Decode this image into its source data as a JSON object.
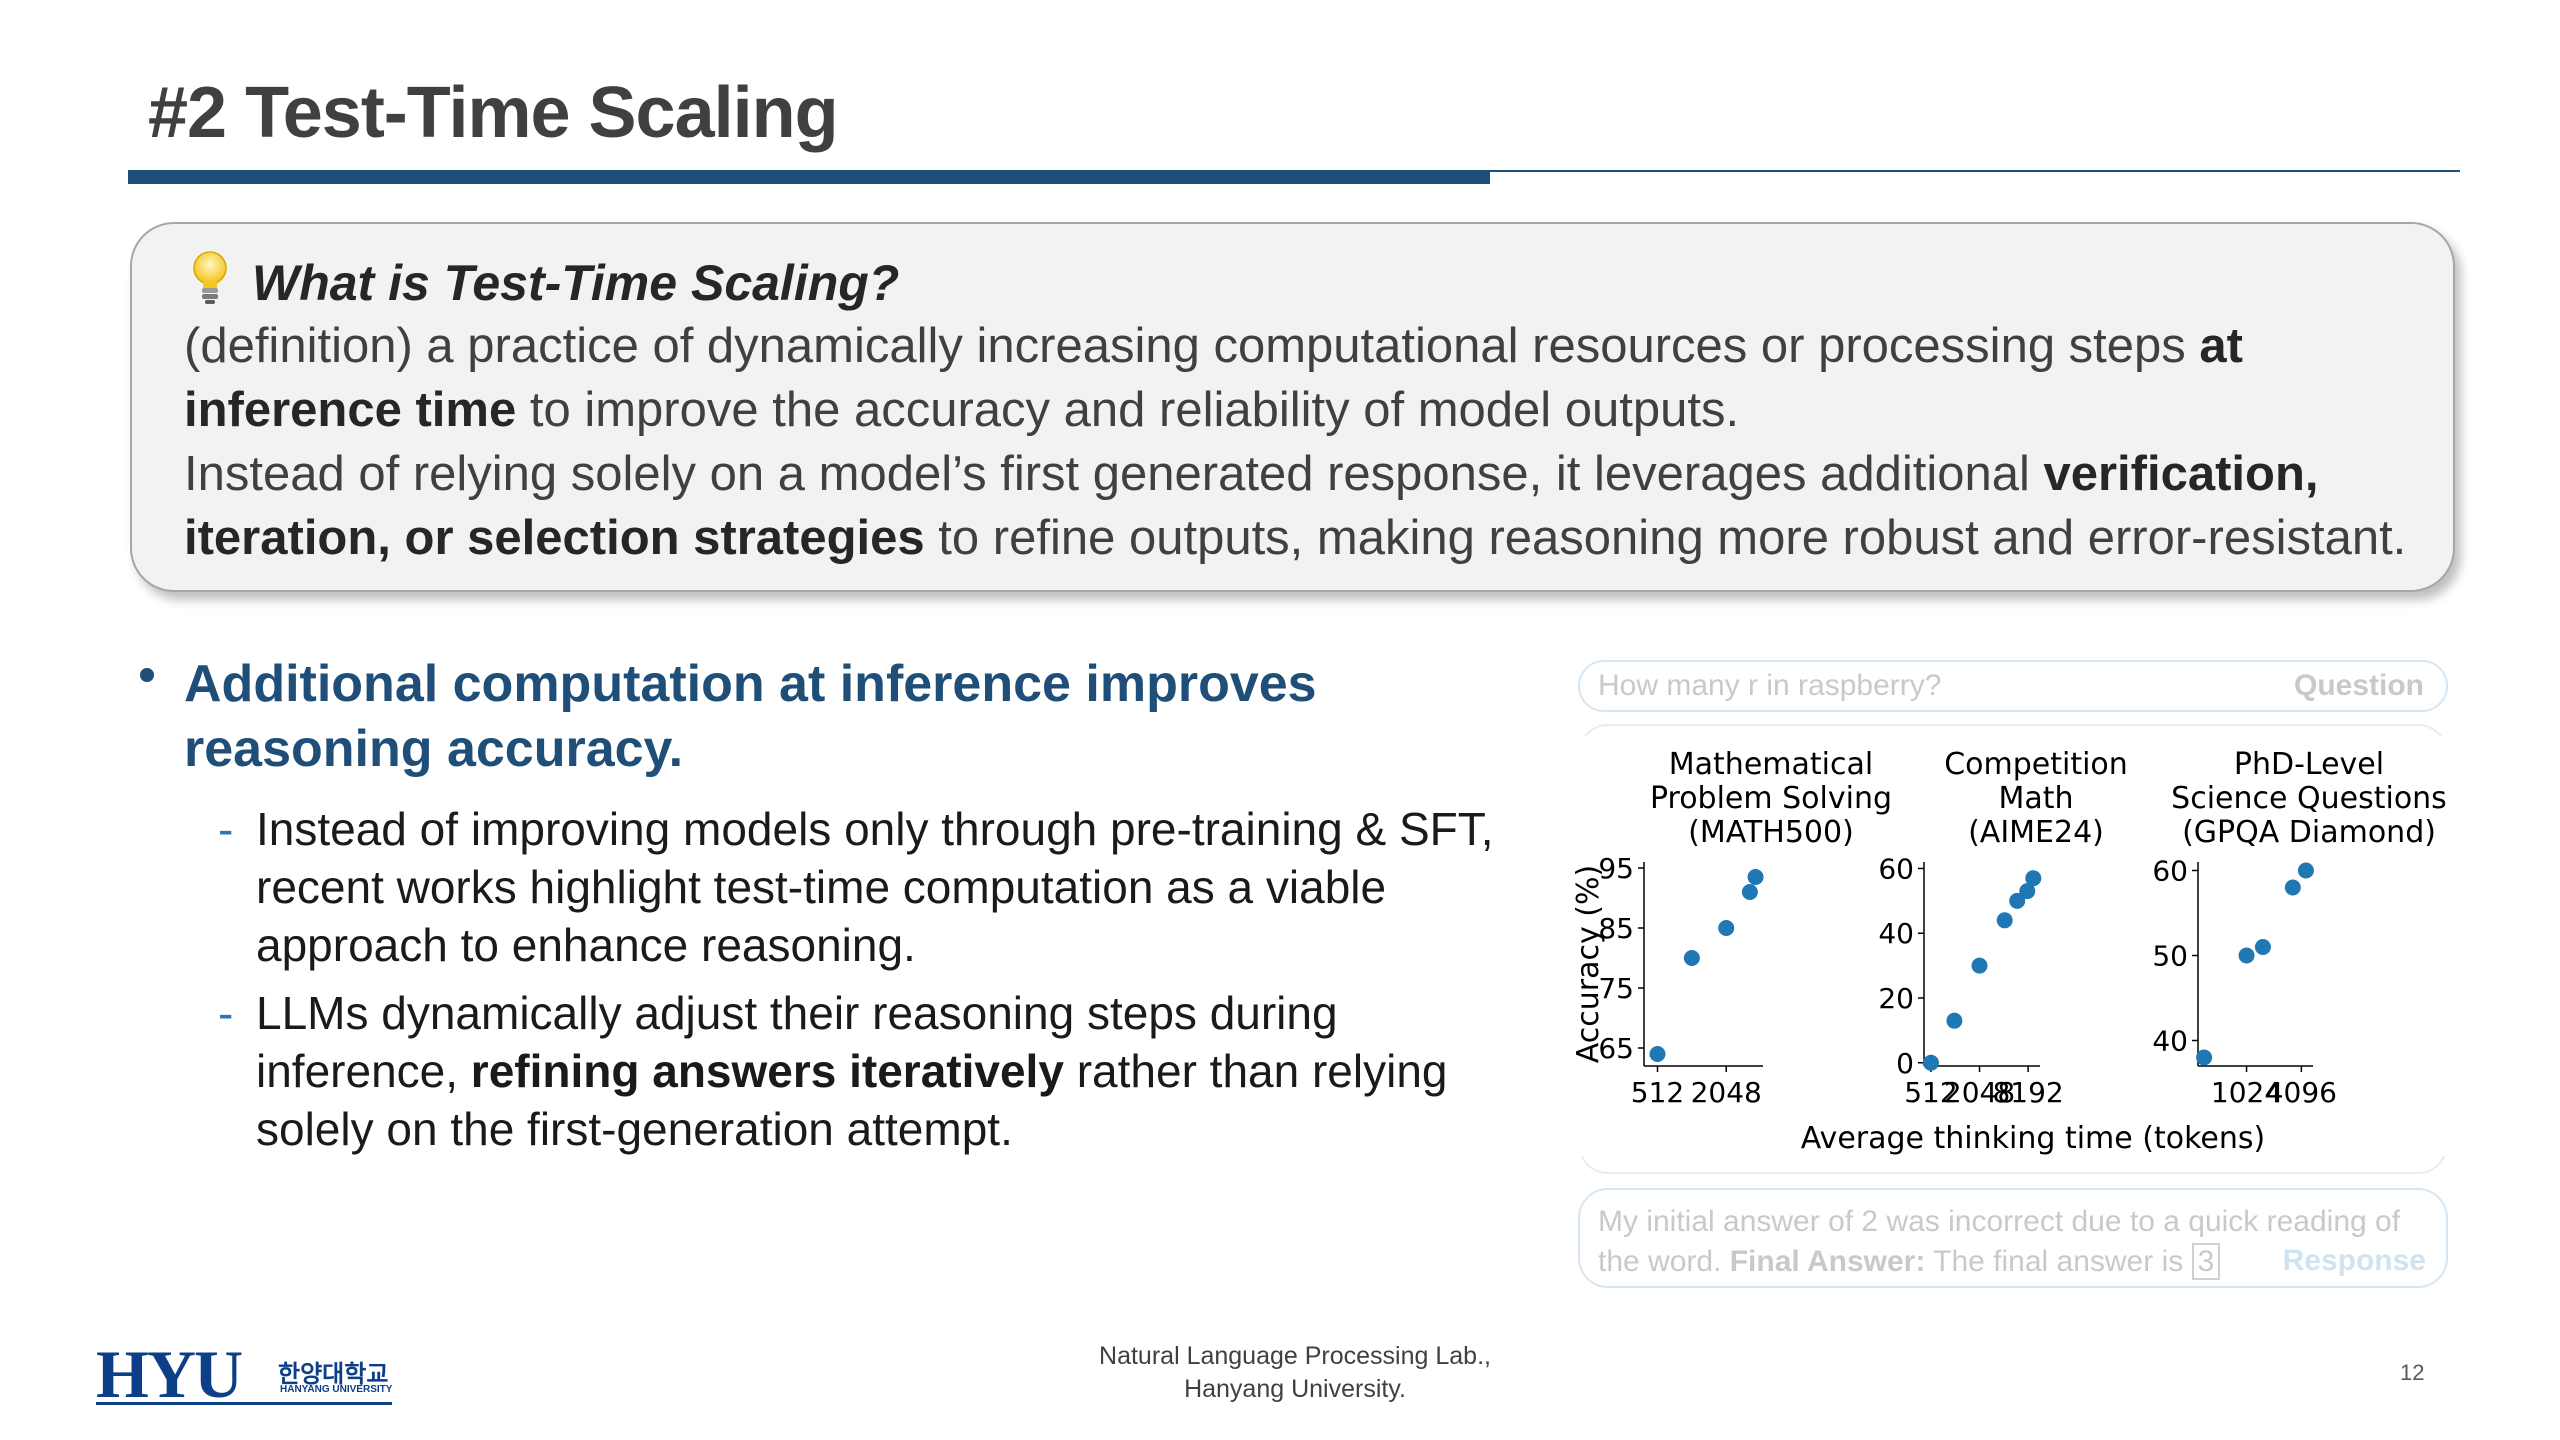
{
  "slide": {
    "title": "#2 Test-Time Scaling",
    "page_number": "12"
  },
  "definition": {
    "heading": "What is Test-Time Scaling?",
    "icon": "lightbulb-icon",
    "p1_a": "(definition) a practice of dynamically increasing computational resources or processing steps ",
    "p1_b": "at inference time",
    "p1_c": " to improve the accuracy and reliability of model outputs.",
    "p2_a": "Instead of relying solely on a model’s first generated response, it leverages additional ",
    "p2_b": "verification, iteration, or selection strategies",
    "p2_c": " to refine outputs, making reasoning more robust and error-resistant."
  },
  "bullets": {
    "main": "Additional computation at inference improves reasoning accuracy.",
    "sub1": "Instead of improving models only through pre-training & SFT, recent works highlight test-time computation as a viable approach to enhance reasoning.",
    "sub2_a": "LLMs dynamically adjust their reasoning steps during inference, ",
    "sub2_b": "refining answers iteratively",
    "sub2_c": " rather than relying solely on the first-generation attempt."
  },
  "background_example": {
    "question": "How many r in raspberry?",
    "question_label": "Question",
    "response_a": "My initial answer of 2 was incorrect due to a quick reading of the word. ",
    "response_b": "Final Answer:",
    "response_c": " The final answer is ",
    "response_d": "3",
    "response_label": "Response"
  },
  "chart_data": {
    "type": "scatter",
    "xlabel": "Average thinking time (tokens)",
    "ylabel": "Accuracy (%)",
    "point_color": "#1f77b4",
    "panels": [
      {
        "title": [
          "Mathematical",
          "Problem Solving",
          "(MATH500)"
        ],
        "x_scale": "log2",
        "xlim": [
          390,
          4300
        ],
        "xticks": [
          512,
          2048
        ],
        "xtick_labels": [
          "512",
          "2048"
        ],
        "ylim": [
          62,
          96
        ],
        "yticks": [
          65,
          75,
          85,
          95
        ],
        "ytick_labels": [
          "65",
          "75",
          "85",
          "95"
        ],
        "points": [
          [
            512,
            64
          ],
          [
            1024,
            80
          ],
          [
            2048,
            85
          ],
          [
            3300,
            91
          ],
          [
            3700,
            93.5
          ]
        ]
      },
      {
        "title": [
          "Competition",
          "Math",
          "(AIME24)"
        ],
        "x_scale": "log2",
        "xlim": [
          420,
          11500
        ],
        "xticks": [
          512,
          2048,
          8192
        ],
        "xtick_labels": [
          "512",
          "2048",
          "8192"
        ],
        "ylim": [
          -1,
          62
        ],
        "yticks": [
          0,
          20,
          40,
          60
        ],
        "ytick_labels": [
          "0",
          "20",
          "40",
          "60"
        ],
        "points": [
          [
            512,
            0
          ],
          [
            1000,
            13
          ],
          [
            2048,
            30
          ],
          [
            4200,
            44
          ],
          [
            6000,
            50
          ],
          [
            8000,
            53
          ],
          [
            9500,
            57
          ]
        ]
      },
      {
        "title": [
          "PhD-Level",
          "Science Questions",
          "(GPQA Diamond)"
        ],
        "x_scale": "log2",
        "xlim": [
          300,
          5500
        ],
        "xticks": [
          1024,
          4096
        ],
        "xtick_labels": [
          "1024",
          "4096"
        ],
        "ylim": [
          37,
          61
        ],
        "yticks": [
          40,
          50,
          60
        ],
        "ytick_labels": [
          "40",
          "50",
          "60"
        ],
        "points": [
          [
            350,
            38
          ],
          [
            1024,
            50
          ],
          [
            1550,
            51
          ],
          [
            3300,
            58
          ],
          [
            4600,
            60
          ]
        ]
      }
    ]
  },
  "footer": {
    "lab_line1": "Natural Language Processing Lab.,",
    "lab_line2": "Hanyang University.",
    "logo_main": "HYU",
    "logo_kr": "한양대학교",
    "logo_en": "HANYANG UNIVERSITY"
  }
}
